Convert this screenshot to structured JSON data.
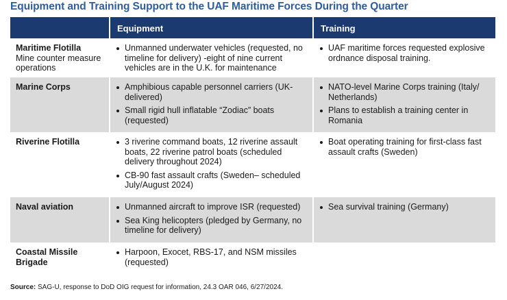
{
  "title": "Equipment and Training Support to the UAF Maritime Forces During the Quarter",
  "table": {
    "headers": [
      "",
      "Equipment",
      "Training"
    ],
    "rows": [
      {
        "name": "Maritime Flotilla",
        "subtitle": "Mine counter measure operations",
        "equipment": [
          "Unmanned underwater vehicles (requested, no timeline for delivery) -eight of nine current vehicles are in the U.K. for maintenance"
        ],
        "training": [
          "UAF maritime forces requested explosive ordnance disposal training."
        ]
      },
      {
        "name": "Marine Corps",
        "equipment": [
          "Amphibious capable personnel carriers (UK-delivered)",
          "Small rigid hull inflatable “Zodiac” boats (requested)"
        ],
        "training": [
          "NATO-level Marine Corps training (Italy/ Netherlands)",
          "Plans to establish a training center in Romania"
        ]
      },
      {
        "name": "Riverine Flotilla",
        "equipment": [
          "3 riverine command boats, 12 riverine assault boats, 22 riverine patrol boats (scheduled delivery throughout 2024)",
          "CB-90 fast assault crafts (Sweden– scheduled July/August 2024)"
        ],
        "training": [
          "Boat operating training for first-class fast assault crafts (Sweden)"
        ]
      },
      {
        "name": "Naval aviation",
        "equipment": [
          "Unmanned aircraft to improve ISR (requested)",
          "Sea King helicopters (pledged by Germany, no timeline for delivery)"
        ],
        "training": [
          "Sea survival training (Germany)"
        ]
      },
      {
        "name": "Coastal Missile Brigade",
        "equipment": [
          "Harpoon, Exocet, RBS-17, and NSM missiles (requested)"
        ],
        "training": []
      }
    ]
  },
  "source": {
    "label": "Source:",
    "text": " SAG-U, response to DoD OIG request for information, 24.3 OAR 046, 6/27/2024."
  }
}
